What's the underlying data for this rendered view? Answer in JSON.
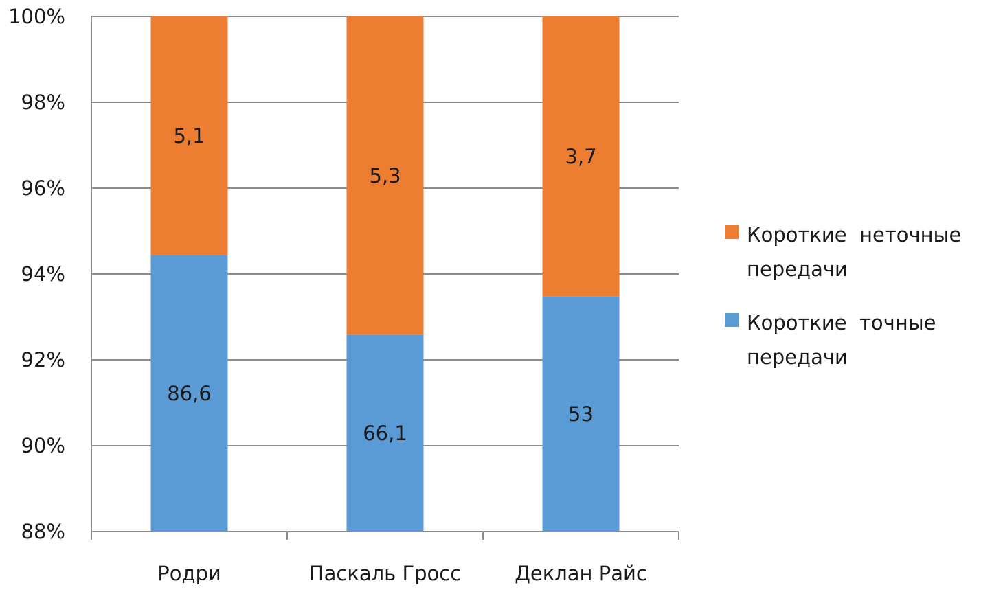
{
  "chart_data": {
    "type": "bar",
    "stacked": "percent",
    "categories": [
      "Родри",
      "Паскаль Гросс",
      "Деклан Райс"
    ],
    "series": [
      {
        "name": "Короткие точные передачи",
        "values": [
          86.6,
          66.1,
          53
        ],
        "labels": [
          "86,6",
          "66,1",
          "53"
        ],
        "color": "#5b9bd5"
      },
      {
        "name": "Короткие неточные передачи",
        "values": [
          5.1,
          5.3,
          3.7
        ],
        "labels": [
          "5,1",
          "5,3",
          "3,7"
        ],
        "color": "#ed7d31"
      }
    ],
    "ylim": [
      88,
      100
    ],
    "yticks": [
      88,
      90,
      92,
      94,
      96,
      98,
      100
    ],
    "ytick_labels": [
      "88%",
      "90%",
      "92%",
      "94%",
      "96%",
      "98%",
      "100%"
    ],
    "grid": true,
    "legend_position": "right",
    "legend_order": [
      1,
      0
    ],
    "legend_lines": [
      [
        "Короткие  неточные",
        "передачи"
      ],
      [
        "Короткие  точные",
        "передачи"
      ]
    ],
    "gridline_color": "#8c8c8c"
  }
}
